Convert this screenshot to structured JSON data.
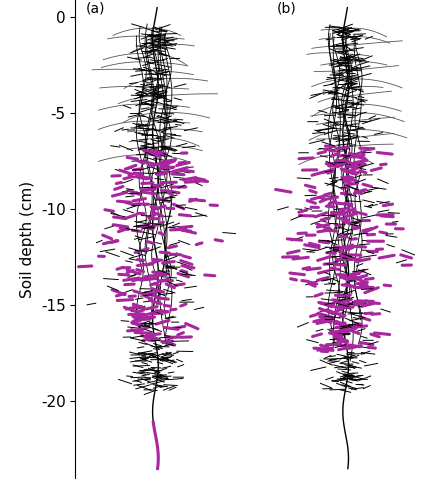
{
  "chart_data": {
    "type": "root_architecture",
    "ylabel": "Soil depth (cm)",
    "ylim": [
      -24,
      0.9
    ],
    "yticks": [
      0,
      -5,
      -10,
      -15,
      -20
    ],
    "tick_labels": "y",
    "color": "#000000",
    "panels": [
      {
        "label": "(a)",
        "root_depth": -23.5,
        "highlights": [
          {
            "range": [
              -17,
              -7
            ],
            "color": "#a8279f"
          },
          {
            "range": [
              -23.5,
              -21
            ],
            "color": "#a8279f"
          }
        ]
      },
      {
        "label": "(b)",
        "root_depth": -23.5,
        "highlights": [
          {
            "range": [
              -17.5,
              -6.5
            ],
            "color": "#a8279f"
          }
        ]
      }
    ]
  }
}
